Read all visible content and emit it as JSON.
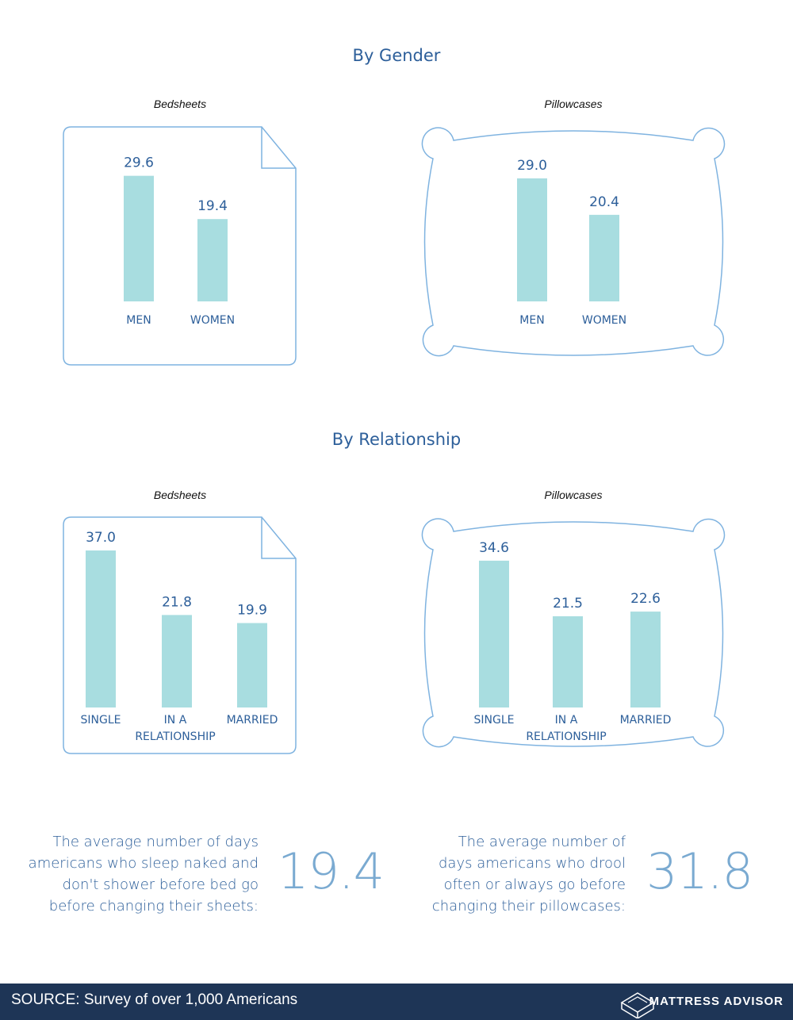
{
  "sections": {
    "gender_title": "By Gender",
    "relationship_title": "By Relationship"
  },
  "chart_data": [
    {
      "type": "bar",
      "title": "Bedsheets",
      "categories": [
        "MEN",
        "WOMEN"
      ],
      "value_labels": [
        "29.6",
        "19.4"
      ],
      "values": [
        29.6,
        19.4
      ],
      "ylim": [
        0,
        40
      ]
    },
    {
      "type": "bar",
      "title": "Pillowcases",
      "categories": [
        "MEN",
        "WOMEN"
      ],
      "value_labels": [
        "29.0",
        "20.4"
      ],
      "values": [
        29.0,
        20.4
      ],
      "ylim": [
        0,
        40
      ]
    },
    {
      "type": "bar",
      "title": "Bedsheets",
      "categories": [
        "SINGLE",
        "IN A RELATIONSHIP",
        "MARRIED"
      ],
      "value_labels": [
        "37.0",
        "21.8",
        "19.9"
      ],
      "values": [
        37.0,
        21.8,
        19.9
      ],
      "ylim": [
        0,
        40
      ]
    },
    {
      "type": "bar",
      "title": "Pillowcases",
      "categories": [
        "SINGLE",
        "IN A RELATIONSHIP",
        "MARRIED"
      ],
      "value_labels": [
        "34.6",
        "21.5",
        "22.6"
      ],
      "values": [
        34.6,
        21.5,
        22.6
      ],
      "ylim": [
        0,
        40
      ]
    }
  ],
  "stats": {
    "left_text_lines": [
      "The average number of days",
      "americans who sleep naked and",
      "don't shower before bed go",
      "before changing their sheets:"
    ],
    "left_value": "19.4",
    "right_text_lines": [
      "The average number of",
      "days americans who drool",
      "often or always go before",
      "changing their pillowcases:"
    ],
    "right_value": "31.8"
  },
  "footer": {
    "source": "SOURCE: Survey of over 1,000 Americans",
    "brand": "MATTRESS ADVISOR",
    "logo_icon": "bed-logo-icon"
  },
  "colors": {
    "bar": "#a8dde0",
    "outline": "#7fb3e0",
    "text_blue": "#2d5f9a",
    "big_number": "#7aaad1",
    "footer_bg": "#1e3556"
  }
}
